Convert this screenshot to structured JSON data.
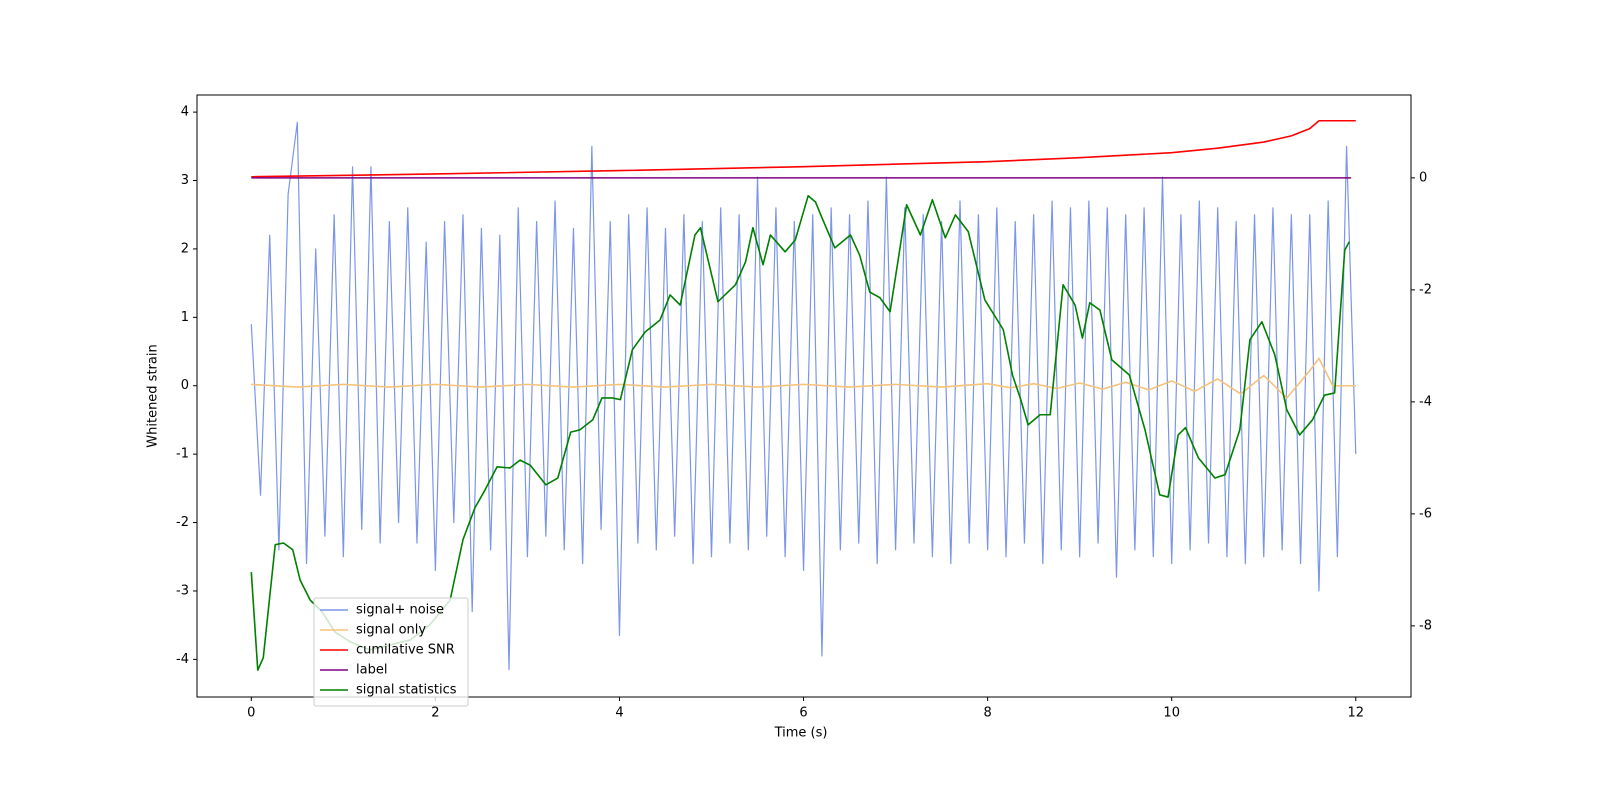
{
  "chart_data": {
    "type": "line",
    "xlabel": "Time (s)",
    "ylabel": "Whitened strain",
    "xlim": [
      -0.59,
      12.6
    ],
    "xticks": [
      0,
      2,
      4,
      6,
      8,
      10,
      12
    ],
    "ylim": [
      -4.55,
      4.25
    ],
    "yticks": [
      -4,
      -3,
      -2,
      -1,
      0,
      1,
      2,
      3,
      4
    ],
    "y2lim": [
      -9.27,
      1.48
    ],
    "y2ticks": [
      -8,
      -6,
      -4,
      -2,
      0
    ],
    "legend": "lower left",
    "series": [
      {
        "name": "signal+ noise",
        "color": "#7b96e8",
        "x": [
          0,
          0.1,
          0.2,
          0.3,
          0.4,
          0.5,
          0.6,
          0.7,
          0.8,
          0.9,
          1,
          1.1,
          1.2,
          1.3,
          1.4,
          1.5,
          1.6,
          1.7,
          1.8,
          1.9,
          2,
          2.1,
          2.2,
          2.3,
          2.4,
          2.5,
          2.6,
          2.7,
          2.8,
          2.9,
          3,
          3.1,
          3.2,
          3.3,
          3.4,
          3.5,
          3.6,
          3.7,
          3.8,
          3.9,
          4,
          4.1,
          4.2,
          4.3,
          4.4,
          4.5,
          4.6,
          4.7,
          4.8,
          4.9,
          5,
          5.1,
          5.2,
          5.3,
          5.4,
          5.5,
          5.6,
          5.7,
          5.8,
          5.9,
          6,
          6.1,
          6.2,
          6.3,
          6.4,
          6.5,
          6.6,
          6.7,
          6.8,
          6.9,
          7,
          7.1,
          7.2,
          7.3,
          7.4,
          7.5,
          7.6,
          7.7,
          7.8,
          7.9,
          8,
          8.1,
          8.2,
          8.3,
          8.4,
          8.5,
          8.6,
          8.7,
          8.8,
          8.9,
          9,
          9.1,
          9.2,
          9.3,
          9.4,
          9.5,
          9.6,
          9.7,
          9.8,
          9.9,
          10,
          10.1,
          10.2,
          10.3,
          10.4,
          10.5,
          10.6,
          10.7,
          10.8,
          10.9,
          11,
          11.1,
          11.2,
          11.3,
          11.4,
          11.5,
          11.6,
          11.7,
          11.8,
          11.9,
          12
        ],
        "values": [
          0.9,
          -1.6,
          2.2,
          -2.4,
          2.8,
          3.85,
          -2.6,
          2.0,
          -2.2,
          2.5,
          -2.5,
          3.2,
          -2.1,
          3.2,
          -2.3,
          2.4,
          -2.0,
          2.6,
          -2.3,
          2.1,
          -2.7,
          2.4,
          -2.0,
          2.5,
          -3.3,
          2.3,
          -2.4,
          2.2,
          -4.15,
          2.6,
          -2.5,
          2.4,
          -2.2,
          2.7,
          -2.4,
          2.3,
          -2.6,
          3.5,
          -2.1,
          2.4,
          -3.65,
          2.5,
          -2.3,
          2.6,
          -2.4,
          2.3,
          -2.2,
          2.5,
          -2.6,
          2.4,
          -2.5,
          2.6,
          -2.3,
          2.5,
          -2.4,
          3.05,
          -2.2,
          2.6,
          -2.5,
          2.4,
          -2.7,
          2.5,
          -3.95,
          2.6,
          -2.4,
          2.5,
          -2.3,
          2.7,
          -2.6,
          3.05,
          -2.4,
          2.6,
          -2.3,
          2.5,
          -2.5,
          2.4,
          -2.6,
          2.7,
          -2.3,
          2.5,
          -2.4,
          2.6,
          -2.5,
          2.4,
          -2.3,
          2.5,
          -2.6,
          2.7,
          -2.4,
          2.6,
          -2.5,
          2.7,
          -2.3,
          2.6,
          -2.8,
          2.5,
          -2.4,
          2.6,
          -2.5,
          3.05,
          -2.6,
          2.5,
          -2.4,
          2.7,
          -2.3,
          2.6,
          -2.5,
          2.4,
          -2.6,
          2.5,
          -2.5,
          2.6,
          -2.4,
          2.5,
          -2.6,
          2.5,
          -3.0,
          2.7,
          -2.5,
          3.5,
          -1.0
        ]
      },
      {
        "name": "signal only",
        "color": "#f5c27a",
        "x": [
          0,
          0.5,
          1,
          1.5,
          2,
          2.5,
          3,
          3.5,
          4,
          4.5,
          5,
          5.5,
          6,
          6.5,
          7,
          7.5,
          8,
          8.25,
          8.5,
          8.75,
          9,
          9.25,
          9.5,
          9.75,
          10,
          10.25,
          10.5,
          10.75,
          11,
          11.25,
          11.5,
          11.6,
          11.75,
          12
        ],
        "values": [
          0.02,
          -0.02,
          0.02,
          -0.02,
          0.02,
          -0.02,
          0.02,
          -0.02,
          0.02,
          -0.02,
          0.02,
          -0.02,
          0.02,
          -0.02,
          0.02,
          -0.02,
          0.03,
          -0.03,
          0.03,
          -0.04,
          0.04,
          -0.05,
          0.05,
          -0.06,
          0.07,
          -0.08,
          0.1,
          -0.12,
          0.15,
          -0.18,
          0.22,
          0.4,
          0,
          0
        ]
      },
      {
        "name": "cumilative SNR",
        "color": "#ff0000",
        "axis": "y2",
        "x": [
          0,
          2,
          4,
          6,
          8,
          9,
          10,
          10.5,
          11,
          11.3,
          11.5,
          11.6,
          12
        ],
        "values": [
          0.02,
          0.07,
          0.13,
          0.2,
          0.29,
          0.36,
          0.45,
          0.53,
          0.64,
          0.75,
          0.88,
          1.02,
          1.02
        ]
      },
      {
        "name": "label",
        "color": "#800080",
        "axis": "y2",
        "x": [
          0,
          11.95
        ],
        "values": [
          0,
          0
        ]
      },
      {
        "name": "signal statistics",
        "color": "#008000",
        "axis": "y2",
        "x": [
          0,
          0.07,
          0.13,
          0.26,
          0.35,
          0.45,
          0.53,
          0.64,
          0.77,
          0.91,
          1.08,
          1.29,
          1.51,
          1.73,
          1.94,
          2.16,
          2.3,
          2.43,
          2.54,
          2.67,
          2.81,
          2.92,
          3.03,
          3.2,
          3.33,
          3.47,
          3.57,
          3.71,
          3.81,
          3.92,
          4.01,
          4.14,
          4.28,
          4.44,
          4.55,
          4.66,
          4.82,
          4.88,
          5.07,
          5.26,
          5.37,
          5.45,
          5.56,
          5.64,
          5.8,
          5.91,
          6.05,
          6.13,
          6.2,
          6.34,
          6.51,
          6.61,
          6.72,
          6.83,
          6.94,
          7.02,
          7.12,
          7.27,
          7.4,
          7.54,
          7.65,
          7.79,
          7.97,
          8.17,
          8.27,
          8.36,
          8.44,
          8.57,
          8.68,
          8.82,
          8.95,
          9.03,
          9.11,
          9.22,
          9.35,
          9.54,
          9.71,
          9.87,
          9.96,
          10.07,
          10.15,
          10.29,
          10.47,
          10.58,
          10.74,
          10.85,
          10.98,
          11.12,
          11.25,
          11.39,
          11.53,
          11.66,
          11.77,
          11.88,
          11.93
        ],
        "values": [
          -7.04,
          -8.79,
          -8.57,
          -6.55,
          -6.52,
          -6.64,
          -7.18,
          -7.54,
          -7.75,
          -8.11,
          -8.29,
          -8.43,
          -8.34,
          -8.25,
          -7.98,
          -7.54,
          -6.46,
          -5.89,
          -5.57,
          -5.16,
          -5.18,
          -5.04,
          -5.13,
          -5.48,
          -5.36,
          -4.54,
          -4.5,
          -4.32,
          -3.93,
          -3.93,
          -3.96,
          -3.07,
          -2.75,
          -2.54,
          -2.09,
          -2.27,
          -1.02,
          -0.89,
          -2.21,
          -1.91,
          -1.5,
          -0.89,
          -1.55,
          -1.02,
          -1.32,
          -1.11,
          -0.32,
          -0.43,
          -0.71,
          -1.25,
          -1.02,
          -1.38,
          -2.04,
          -2.14,
          -2.39,
          -1.55,
          -0.48,
          -1.02,
          -0.39,
          -1.07,
          -0.66,
          -0.96,
          -2.18,
          -2.71,
          -3.52,
          -3.96,
          -4.41,
          -4.23,
          -4.23,
          -1.91,
          -2.27,
          -2.86,
          -2.23,
          -2.36,
          -3.25,
          -3.52,
          -4.5,
          -5.66,
          -5.7,
          -4.59,
          -4.46,
          -5.0,
          -5.36,
          -5.3,
          -4.5,
          -2.89,
          -2.57,
          -3.16,
          -4.14,
          -4.59,
          -4.32,
          -3.88,
          -3.84,
          -1.29,
          -1.14
        ]
      }
    ]
  }
}
